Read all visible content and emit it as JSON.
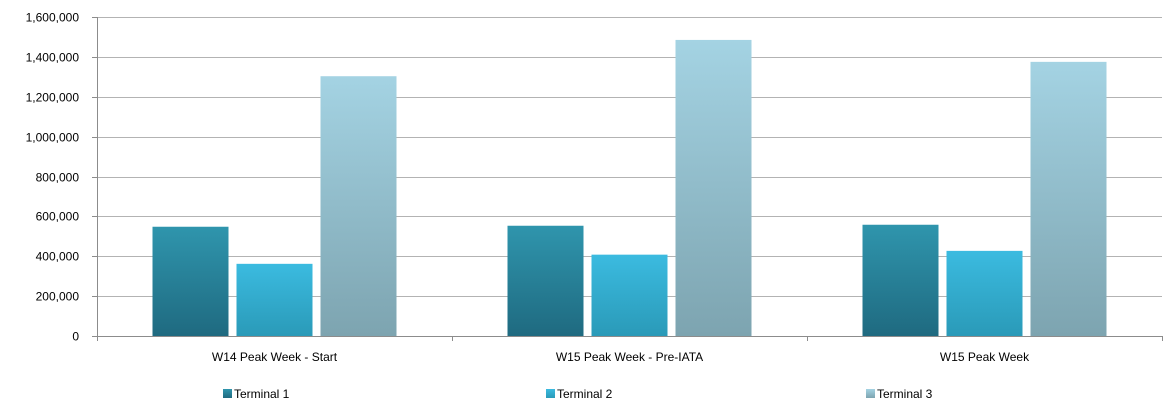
{
  "chart_data": {
    "type": "bar",
    "categories": [
      "W14 Peak Week - Start",
      "W15 Peak Week - Pre-IATA",
      "W15 Peak Week"
    ],
    "series": [
      {
        "name": "Terminal 1",
        "values": [
          548000,
          553000,
          558000
        ],
        "color": "#2a7f96"
      },
      {
        "name": "Terminal 2",
        "values": [
          362000,
          408000,
          427000
        ],
        "color": "#33b0d0"
      },
      {
        "name": "Terminal 3",
        "values": [
          1303000,
          1485000,
          1375000
        ],
        "color": "#94c4d4"
      }
    ],
    "ylim": [
      0,
      1600000
    ],
    "yticks": [
      "0",
      "200,000",
      "400,000",
      "600,000",
      "800,000",
      "1,000,000",
      "1,200,000",
      "1,400,000",
      "1,600,000"
    ],
    "grid": true,
    "legend": "bottom"
  }
}
